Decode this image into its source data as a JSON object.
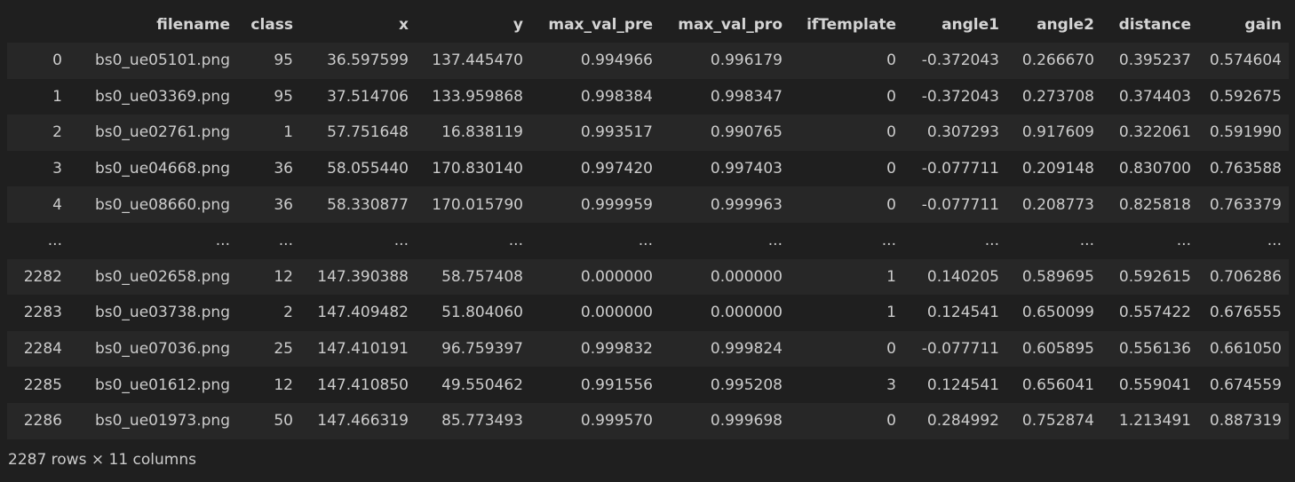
{
  "dataframe": {
    "columns": [
      "",
      "filename",
      "class",
      "x",
      "y",
      "max_val_pre",
      "max_val_pro",
      "ifTemplate",
      "angle1",
      "angle2",
      "distance",
      "gain"
    ],
    "rows": [
      [
        "0",
        "bs0_ue05101.png",
        "95",
        "36.597599",
        "137.445470",
        "0.994966",
        "0.996179",
        "0",
        "-0.372043",
        "0.266670",
        "0.395237",
        "0.574604"
      ],
      [
        "1",
        "bs0_ue03369.png",
        "95",
        "37.514706",
        "133.959868",
        "0.998384",
        "0.998347",
        "0",
        "-0.372043",
        "0.273708",
        "0.374403",
        "0.592675"
      ],
      [
        "2",
        "bs0_ue02761.png",
        "1",
        "57.751648",
        "16.838119",
        "0.993517",
        "0.990765",
        "0",
        "0.307293",
        "0.917609",
        "0.322061",
        "0.591990"
      ],
      [
        "3",
        "bs0_ue04668.png",
        "36",
        "58.055440",
        "170.830140",
        "0.997420",
        "0.997403",
        "0",
        "-0.077711",
        "0.209148",
        "0.830700",
        "0.763588"
      ],
      [
        "4",
        "bs0_ue08660.png",
        "36",
        "58.330877",
        "170.015790",
        "0.999959",
        "0.999963",
        "0",
        "-0.077711",
        "0.208773",
        "0.825818",
        "0.763379"
      ],
      [
        "...",
        "...",
        "...",
        "...",
        "...",
        "...",
        "...",
        "...",
        "...",
        "...",
        "...",
        "..."
      ],
      [
        "2282",
        "bs0_ue02658.png",
        "12",
        "147.390388",
        "58.757408",
        "0.000000",
        "0.000000",
        "1",
        "0.140205",
        "0.589695",
        "0.592615",
        "0.706286"
      ],
      [
        "2283",
        "bs0_ue03738.png",
        "2",
        "147.409482",
        "51.804060",
        "0.000000",
        "0.000000",
        "1",
        "0.124541",
        "0.650099",
        "0.557422",
        "0.676555"
      ],
      [
        "2284",
        "bs0_ue07036.png",
        "25",
        "147.410191",
        "96.759397",
        "0.999832",
        "0.999824",
        "0",
        "-0.077711",
        "0.605895",
        "0.556136",
        "0.661050"
      ],
      [
        "2285",
        "bs0_ue01612.png",
        "12",
        "147.410850",
        "49.550462",
        "0.991556",
        "0.995208",
        "3",
        "0.124541",
        "0.656041",
        "0.559041",
        "0.674559"
      ],
      [
        "2286",
        "bs0_ue01973.png",
        "50",
        "147.466319",
        "85.773493",
        "0.999570",
        "0.999698",
        "0",
        "0.284992",
        "0.752874",
        "1.213491",
        "0.887319"
      ]
    ],
    "shape_text": "2287 rows × 11 columns"
  }
}
